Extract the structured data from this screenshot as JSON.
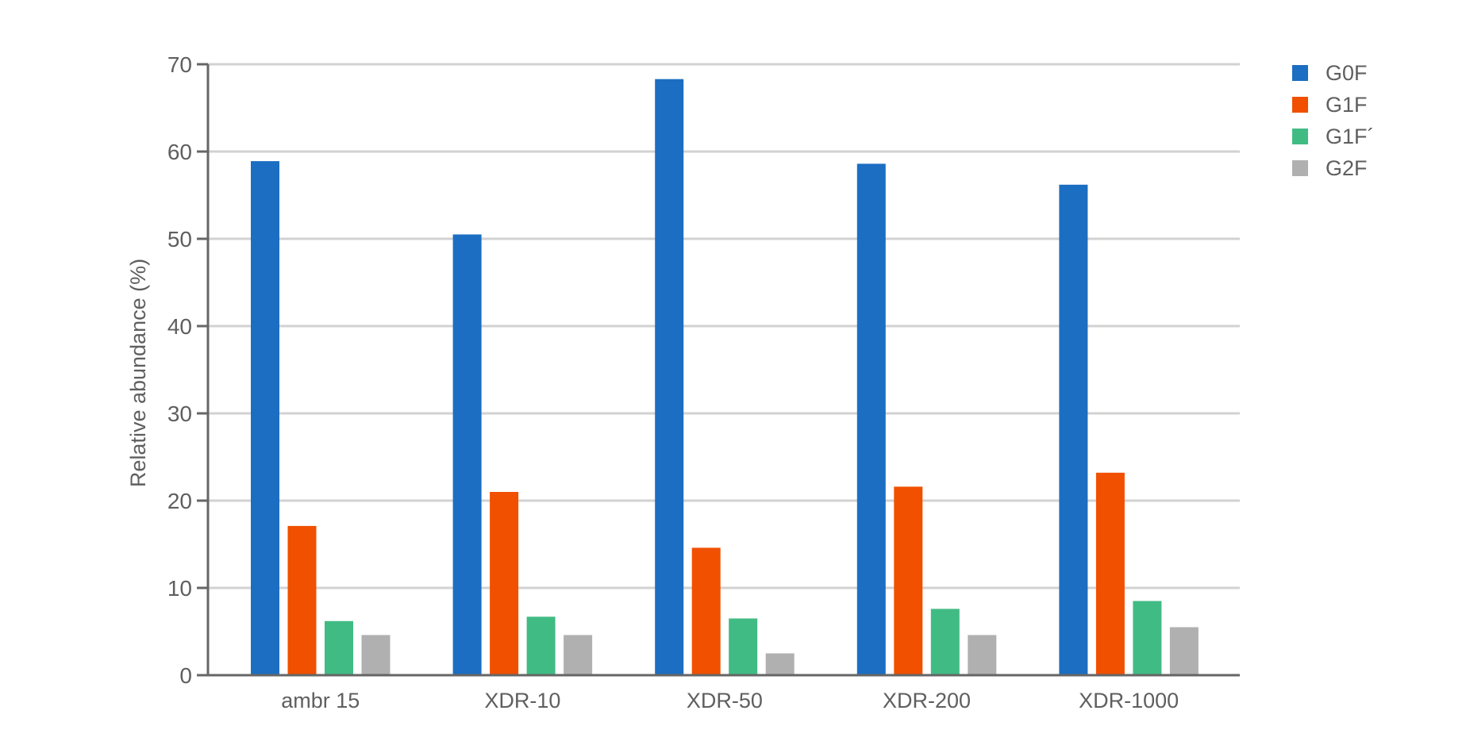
{
  "chart_data": {
    "type": "bar",
    "title": "",
    "xlabel": "",
    "ylabel": "Relative abundance (%)",
    "ylim": [
      0,
      70
    ],
    "yticks": [
      0,
      10,
      20,
      30,
      40,
      50,
      60,
      70
    ],
    "grid": true,
    "legend_position": "right-top",
    "categories": [
      "ambr 15",
      "XDR-10",
      "XDR-50",
      "XDR-200",
      "XDR-1000"
    ],
    "series": [
      {
        "name": "G0F",
        "color": "#1b6ec2",
        "values": [
          58.9,
          50.5,
          68.3,
          58.6,
          56.2
        ]
      },
      {
        "name": "G1F",
        "color": "#f05000",
        "values": [
          17.1,
          21.0,
          14.6,
          21.6,
          23.2
        ]
      },
      {
        "name": "G1F´",
        "color": "#41bb84",
        "values": [
          6.2,
          6.7,
          6.5,
          7.6,
          8.5
        ]
      },
      {
        "name": "G2F",
        "color": "#b0b0b0",
        "values": [
          4.6,
          4.6,
          2.5,
          4.6,
          5.5
        ]
      }
    ]
  },
  "colors": {
    "axis": "#666666",
    "grid": "#d2d2d2",
    "text": "#5f5f5f"
  }
}
